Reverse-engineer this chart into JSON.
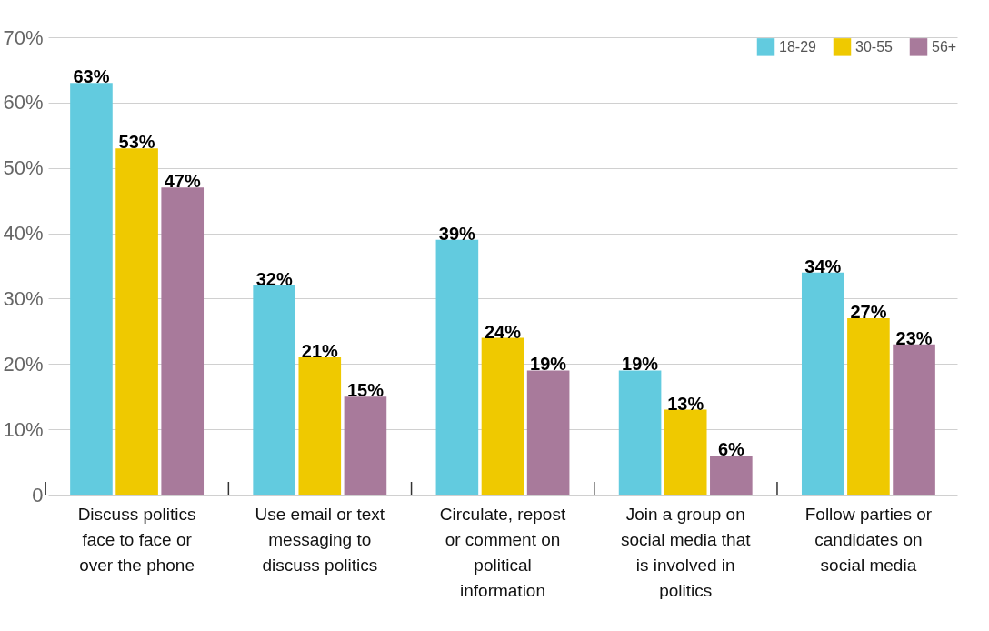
{
  "chart_data": {
    "type": "bar",
    "categories": [
      "Discuss politics face to face or over the phone",
      "Use email or text messaging to discuss politics",
      "Circulate, repost or comment on political information",
      "Join a group on social media that is involved in politics",
      "Follow parties or candidates on social media"
    ],
    "series": [
      {
        "name": "18-29",
        "color": "#62cbdf",
        "values": [
          63,
          32,
          39,
          19,
          34
        ]
      },
      {
        "name": "30-55",
        "color": "#efc900",
        "values": [
          53,
          21,
          24,
          13,
          27
        ]
      },
      {
        "name": "56+",
        "color": "#a87a9b",
        "values": [
          47,
          15,
          19,
          6,
          23
        ]
      }
    ],
    "ylim": [
      0,
      70
    ],
    "yticks": [
      0,
      {
        "value": 10,
        "label": "10%"
      },
      {
        "value": 20,
        "label": "20%"
      },
      {
        "value": 30,
        "label": "30%"
      },
      {
        "value": 40,
        "label": "40%"
      },
      {
        "value": 50,
        "label": "50%"
      },
      {
        "value": 60,
        "label": "60%"
      },
      {
        "value": 70,
        "label": "70%"
      }
    ],
    "value_labels": [
      [
        "63%",
        "32%",
        "39%",
        "19%",
        "34%"
      ],
      [
        "53%",
        "21%",
        "24%",
        "13%",
        "27%"
      ],
      [
        "47%",
        "15%",
        "19%",
        "6%",
        "23%"
      ]
    ],
    "grid": "y",
    "legend": "top right"
  }
}
